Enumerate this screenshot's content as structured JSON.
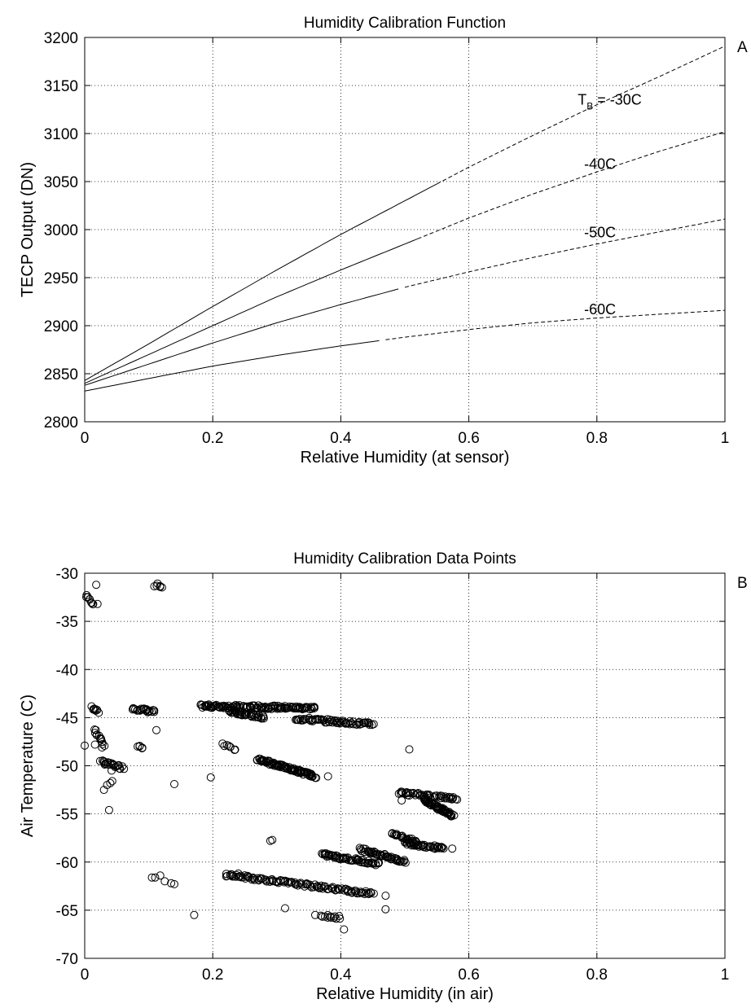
{
  "chart_data": [
    {
      "type": "line",
      "panel_label": "A",
      "title": "Humidity Calibration Function",
      "xlabel": "Relative Humidity (at sensor)",
      "ylabel": "TECP Output (DN)",
      "xlim": [
        0,
        1
      ],
      "ylim": [
        2800,
        3200
      ],
      "xticks": [
        "0",
        "0.2",
        "0.4",
        "0.6",
        "0.8",
        "1"
      ],
      "yticks": [
        "2800",
        "2850",
        "2900",
        "2950",
        "3000",
        "3050",
        "3100",
        "3150",
        "3200"
      ],
      "grid": true,
      "legend": "none",
      "x": [
        0,
        0.1,
        0.2,
        0.3,
        0.4,
        0.5,
        0.6,
        0.7,
        0.8,
        0.9,
        1.0
      ],
      "series": [
        {
          "label": "T_B = -30C",
          "values": [
            2843,
            2881,
            2920,
            2958,
            2995,
            3030,
            3065,
            3098,
            3130,
            3160,
            3191
          ]
        },
        {
          "label": "-40C",
          "values": [
            2840,
            2870,
            2900,
            2930,
            2958,
            2985,
            3012,
            3037,
            3060,
            3082,
            3102
          ]
        },
        {
          "label": "-50C",
          "values": [
            2838,
            2860,
            2882,
            2903,
            2922,
            2940,
            2956,
            2971,
            2985,
            2998,
            3011
          ]
        },
        {
          "label": "-60C",
          "values": [
            2832,
            2845,
            2858,
            2869,
            2879,
            2888,
            2896,
            2903,
            2908,
            2912,
            2916
          ]
        }
      ],
      "annotations": [
        {
          "main": "T",
          "sub": "B",
          "rest": " = -30C",
          "x": 0.77,
          "y": 3130
        },
        {
          "text": "-40C",
          "x": 0.78,
          "y": 3063
        },
        {
          "text": "-50C",
          "x": 0.78,
          "y": 2992
        },
        {
          "text": "-60C",
          "x": 0.78,
          "y": 2912
        }
      ]
    },
    {
      "type": "scatter",
      "panel_label": "B",
      "title": "Humidity Calibration Data Points",
      "xlabel": "Relative Humidity (in air)",
      "ylabel": "Air Temperature (C)",
      "xlim": [
        0,
        1
      ],
      "ylim": [
        -70,
        -30
      ],
      "xticks": [
        "0",
        "0.2",
        "0.4",
        "0.6",
        "0.8",
        "1"
      ],
      "yticks": [
        "-70",
        "-65",
        "-60",
        "-55",
        "-50",
        "-45",
        "-40",
        "-35",
        "-30"
      ],
      "grid": true,
      "legend": "none",
      "marker": "open-circle",
      "clusters": [
        {
          "x": [
            0.003,
            0.013
          ],
          "y": [
            -32.3,
            -33.2
          ],
          "n": 10
        },
        {
          "x": [
            0.11,
            0.12
          ],
          "y": [
            -31.2,
            -31.4
          ],
          "n": 6
        },
        {
          "x": [
            0.012,
            0.022
          ],
          "y": [
            -44.0,
            -44.4
          ],
          "n": 8
        },
        {
          "x": [
            0.015,
            0.03
          ],
          "y": [
            -46.2,
            -47.8
          ],
          "n": 12
        },
        {
          "x": [
            0.025,
            0.06
          ],
          "y": [
            -49.6,
            -50.2
          ],
          "n": 24
        },
        {
          "x": [
            0.075,
            0.11
          ],
          "y": [
            -44.0,
            -44.4
          ],
          "n": 22
        },
        {
          "x": [
            0.082,
            0.09
          ],
          "y": [
            -48.0,
            -48.2
          ],
          "n": 5
        },
        {
          "x": [
            0.18,
            0.36
          ],
          "y": [
            -43.8,
            -44.0
          ],
          "n": 130
        },
        {
          "x": [
            0.225,
            0.28
          ],
          "y": [
            -44.3,
            -45.0
          ],
          "n": 40
        },
        {
          "x": [
            0.215,
            0.235
          ],
          "y": [
            -47.8,
            -48.3
          ],
          "n": 8
        },
        {
          "x": [
            0.33,
            0.45
          ],
          "y": [
            -45.1,
            -45.7
          ],
          "n": 70
        },
        {
          "x": [
            0.27,
            0.36
          ],
          "y": [
            -49.3,
            -51.1
          ],
          "n": 90
        },
        {
          "x": [
            0.49,
            0.58
          ],
          "y": [
            -52.8,
            -53.4
          ],
          "n": 50
        },
        {
          "x": [
            0.53,
            0.575
          ],
          "y": [
            -53.5,
            -55.2
          ],
          "n": 60
        },
        {
          "x": [
            0.37,
            0.46
          ],
          "y": [
            -59.2,
            -60.2
          ],
          "n": 60
        },
        {
          "x": [
            0.43,
            0.5
          ],
          "y": [
            -58.6,
            -60.0
          ],
          "n": 50
        },
        {
          "x": [
            0.48,
            0.52
          ],
          "y": [
            -57.0,
            -58.0
          ],
          "n": 25
        },
        {
          "x": [
            0.5,
            0.56
          ],
          "y": [
            -58.0,
            -58.6
          ],
          "n": 40
        },
        {
          "x": [
            0.22,
            0.45
          ],
          "y": [
            -61.3,
            -63.3
          ],
          "n": 120
        },
        {
          "x": [
            0.37,
            0.4
          ],
          "y": [
            -65.5,
            -65.8
          ],
          "n": 12
        }
      ],
      "points": [
        {
          "x": 0.0,
          "y": -47.9
        },
        {
          "x": 0.018,
          "y": -31.2
        },
        {
          "x": 0.02,
          "y": -33.2
        },
        {
          "x": 0.016,
          "y": -47.8
        },
        {
          "x": 0.027,
          "y": -48.1
        },
        {
          "x": 0.03,
          "y": -52.5
        },
        {
          "x": 0.035,
          "y": -52.0
        },
        {
          "x": 0.04,
          "y": -51.8
        },
        {
          "x": 0.043,
          "y": -51.6
        },
        {
          "x": 0.038,
          "y": -54.6
        },
        {
          "x": 0.042,
          "y": -50.5
        },
        {
          "x": 0.112,
          "y": -46.3
        },
        {
          "x": 0.14,
          "y": -51.9
        },
        {
          "x": 0.197,
          "y": -51.2
        },
        {
          "x": 0.105,
          "y": -61.6
        },
        {
          "x": 0.11,
          "y": -61.6
        },
        {
          "x": 0.118,
          "y": -61.4
        },
        {
          "x": 0.125,
          "y": -62.0
        },
        {
          "x": 0.135,
          "y": -62.2
        },
        {
          "x": 0.14,
          "y": -62.3
        },
        {
          "x": 0.171,
          "y": -65.5
        },
        {
          "x": 0.29,
          "y": -57.8
        },
        {
          "x": 0.293,
          "y": -57.7
        },
        {
          "x": 0.313,
          "y": -64.8
        },
        {
          "x": 0.38,
          "y": -51.1
        },
        {
          "x": 0.405,
          "y": -67.0
        },
        {
          "x": 0.47,
          "y": -64.9
        },
        {
          "x": 0.507,
          "y": -48.3
        },
        {
          "x": 0.495,
          "y": -53.6
        },
        {
          "x": 0.574,
          "y": -58.6
        },
        {
          "x": 0.36,
          "y": -65.5
        },
        {
          "x": 0.24,
          "y": -61.2
        },
        {
          "x": 0.47,
          "y": -63.5
        }
      ]
    }
  ]
}
